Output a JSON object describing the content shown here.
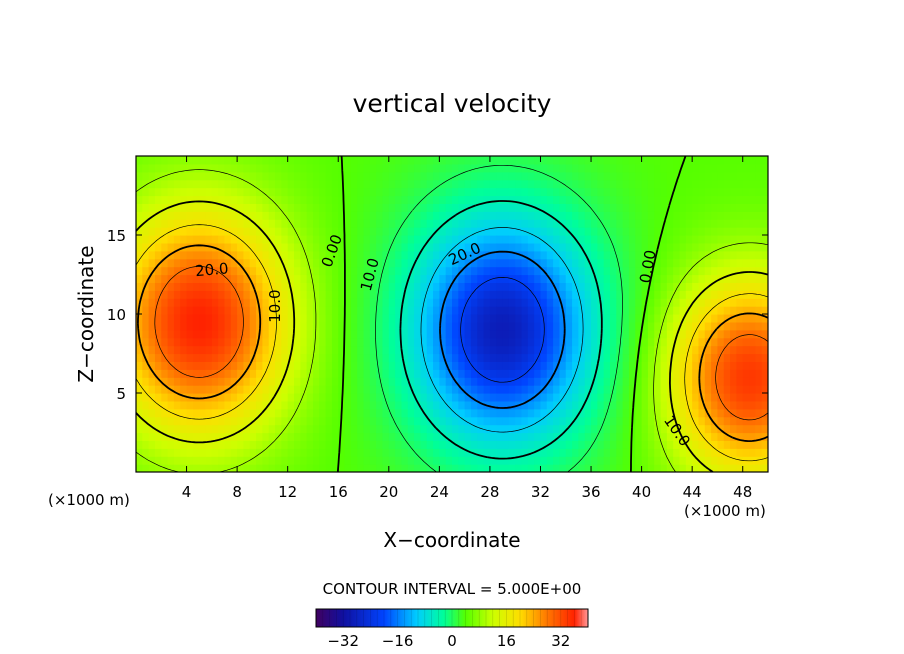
{
  "chart_data": {
    "type": "heatmap",
    "title": "vertical velocity",
    "xlabel": "X−coordinate",
    "ylabel": "Z−coordinate",
    "x_unit_left": "(×1000 m)",
    "x_unit_right": "(×1000 m)",
    "xlim": [
      0,
      50
    ],
    "ylim": [
      0,
      20
    ],
    "x_ticks": [
      4,
      8,
      12,
      16,
      20,
      24,
      28,
      32,
      36,
      40,
      44,
      48
    ],
    "x_tick_labels": [
      "4",
      "8",
      "12",
      "16",
      "20",
      "24",
      "28",
      "32",
      "36",
      "40",
      "44",
      "48"
    ],
    "y_ticks": [
      5,
      10,
      15
    ],
    "y_tick_labels": [
      "5",
      "10",
      "15"
    ],
    "contour_interval_text": "CONTOUR INTERVAL = 5.000E+00",
    "contour_labels": [
      {
        "text": "20.0",
        "x": 6.0,
        "y": 12.8,
        "angle": -5
      },
      {
        "text": "10.0",
        "x": 11.0,
        "y": 10.5,
        "angle": -90
      },
      {
        "text": "0.00",
        "x": 15.5,
        "y": 14.0,
        "angle": -70
      },
      {
        "text": "10.0",
        "x": 18.5,
        "y": 12.5,
        "angle": -75
      },
      {
        "text": "20.0",
        "x": 26.0,
        "y": 13.8,
        "angle": -25
      },
      {
        "text": "0.00",
        "x": 40.5,
        "y": 13.0,
        "angle": -80
      },
      {
        "text": "10.0",
        "x": 42.8,
        "y": 2.6,
        "angle": 55
      }
    ],
    "colorbar": {
      "min": -40,
      "max": 40,
      "ticks": [
        -32,
        -16,
        0,
        16,
        32
      ],
      "tick_labels": [
        "−32",
        "−16",
        "0",
        "16",
        "32"
      ]
    },
    "colormap": [
      "#400060",
      "#1010a0",
      "#0044ff",
      "#00ccff",
      "#00ff99",
      "#55ff00",
      "#ccff00",
      "#ffdd00",
      "#ff7700",
      "#ff2200",
      "#ff9999"
    ],
    "features": [
      {
        "x": 5.0,
        "y": 9.5,
        "amp": 32,
        "sx": 5.0,
        "sy": 5.0
      },
      {
        "x": 29.0,
        "y": 9.0,
        "amp": -30,
        "sx": 5.5,
        "sy": 5.5
      },
      {
        "x": 48.5,
        "y": 6.0,
        "amp": 30,
        "sx": 4.5,
        "sy": 4.5
      }
    ]
  }
}
